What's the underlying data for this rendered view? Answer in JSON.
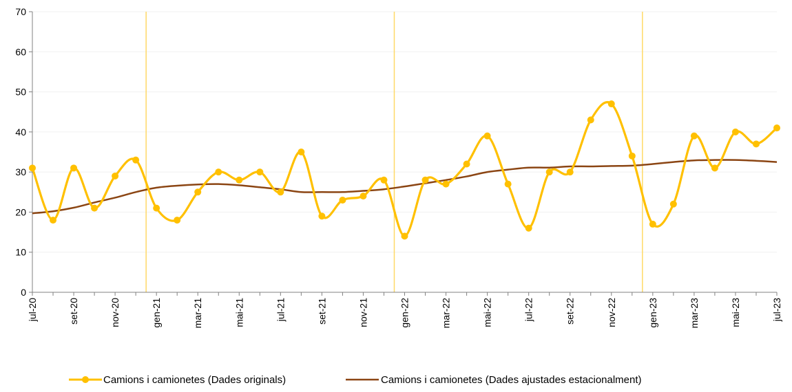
{
  "chart_data": {
    "type": "line",
    "title": "",
    "xlabel": "",
    "ylabel": "",
    "ylim": [
      0,
      70
    ],
    "yticks": [
      0,
      10,
      20,
      30,
      40,
      50,
      60,
      70
    ],
    "grid": "horizontal",
    "legend_position": "bottom",
    "categories": [
      "jul-20",
      "ago-20",
      "set-20",
      "oct-20",
      "nov-20",
      "des-20",
      "gen-21",
      "feb-21",
      "mar-21",
      "abr-21",
      "mai-21",
      "jun-21",
      "jul-21",
      "ago-21",
      "set-21",
      "oct-21",
      "nov-21",
      "des-21",
      "gen-22",
      "feb-22",
      "mar-22",
      "abr-22",
      "mai-22",
      "jun-22",
      "jul-22",
      "ago-22",
      "set-22",
      "oct-22",
      "nov-22",
      "des-22",
      "gen-23",
      "feb-23",
      "mar-23",
      "abr-23",
      "mai-23",
      "jun-23",
      "jul-23"
    ],
    "tick_labels": [
      "jul-20",
      "set-20",
      "nov-20",
      "gen-21",
      "mar-21",
      "mai-21",
      "jul-21",
      "set-21",
      "nov-21",
      "gen-22",
      "mar-22",
      "mai-22",
      "jul-22",
      "set-22",
      "nov-22",
      "gen-23",
      "mar-23",
      "mai-23",
      "jul-23"
    ],
    "year_separators_after": [
      "des-20",
      "des-21",
      "des-22"
    ],
    "series": [
      {
        "name": "Camions i camionetes (Dades originals)",
        "color": "#FFC000",
        "marker": "circle",
        "values": [
          31,
          18,
          31,
          21,
          29,
          33,
          21,
          18,
          25,
          30,
          28,
          30,
          25,
          35,
          19,
          23,
          24,
          28,
          14,
          28,
          27,
          32,
          39,
          27,
          16,
          30,
          30,
          43,
          47,
          34,
          17,
          22,
          39,
          31,
          40,
          37,
          41
        ]
      },
      {
        "name": "Camions i camionetes (Dades ajustades estacionalment)",
        "color": "#8B4513",
        "marker": "none",
        "values": [
          19.7,
          20.2,
          21.1,
          22.4,
          23.6,
          25.0,
          26.1,
          26.6,
          26.9,
          27.0,
          26.7,
          26.2,
          25.7,
          25.0,
          25.0,
          25.0,
          25.3,
          25.7,
          26.4,
          27.2,
          28.0,
          28.9,
          30.0,
          30.6,
          31.1,
          31.1,
          31.4,
          31.4,
          31.5,
          31.6,
          32.0,
          32.5,
          32.9,
          33.0,
          33.0,
          32.8,
          32.5
        ]
      }
    ]
  },
  "colors": {
    "original": "#FFC000",
    "adjusted": "#8B4513",
    "separator": "#FFD966",
    "grid": "#F0F0F0",
    "axis": "#808080"
  }
}
